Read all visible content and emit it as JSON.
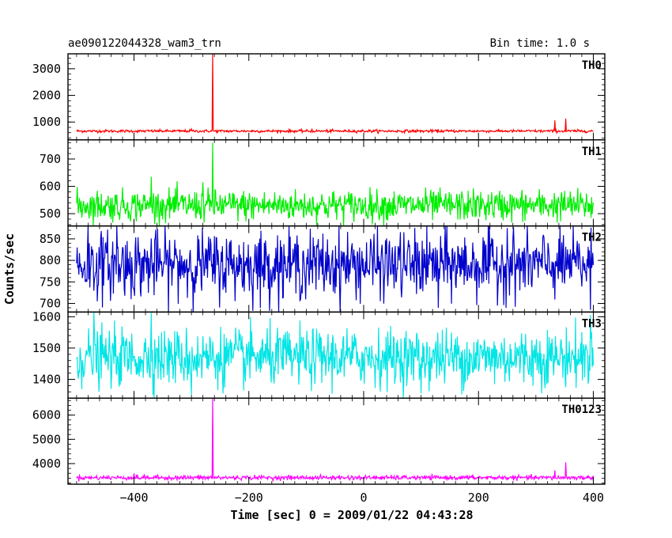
{
  "header": {
    "title": "ae090122044328_wam3_trn",
    "bin_time": "Bin time: 1.0 s"
  },
  "chart_data": {
    "type": "line",
    "xlabel": "Time [sec] 0 = 2009/01/22 04:43:28",
    "ylabel": "Counts/sec",
    "xlim": [
      -515,
      420
    ],
    "x_ticks": [
      -400,
      -200,
      0,
      200,
      400
    ],
    "x_range": [
      -500,
      400
    ],
    "panels": [
      {
        "name": "TH0",
        "color": "#ff0000",
        "ylim": [
          330,
          3560
        ],
        "y_ticks": [
          1000,
          2000,
          3000
        ],
        "baseline": 660,
        "noise": 25,
        "spikes": [
          [
            -263,
            3560
          ],
          [
            -300,
            740
          ],
          [
            -90,
            730
          ],
          [
            235,
            740
          ],
          [
            333,
            1060
          ],
          [
            352,
            1130
          ]
        ]
      },
      {
        "name": "TH1",
        "color": "#00ee00",
        "ylim": [
          455,
          770
        ],
        "y_ticks": [
          500,
          600,
          700
        ],
        "baseline": 530,
        "noise": 28,
        "spikes": [
          [
            -263,
            760
          ],
          [
            -370,
            635
          ],
          [
            -280,
            615
          ]
        ]
      },
      {
        "name": "TH2",
        "color": "#0000cc",
        "ylim": [
          680,
          880
        ],
        "y_ticks": [
          700,
          750,
          800,
          850
        ],
        "baseline": 790,
        "noise": 38,
        "spikes": [
          [
            -480,
            880
          ],
          [
            -430,
            880
          ],
          [
            250,
            875
          ],
          [
            130,
            690
          ],
          [
            -180,
            690
          ],
          [
            395,
            685
          ]
        ]
      },
      {
        "name": "TH3",
        "color": "#00e5e5",
        "ylim": [
          1340,
          1615
        ],
        "y_ticks": [
          1400,
          1500,
          1600
        ],
        "baseline": 1470,
        "noise": 45,
        "spikes": [
          [
            -470,
            1615
          ],
          [
            -370,
            1612
          ],
          [
            395,
            1605
          ],
          [
            -300,
            1350
          ],
          [
            100,
            1355
          ]
        ]
      },
      {
        "name": "TH0123",
        "color": "#ff00ff",
        "ylim": [
          3150,
          6700
        ],
        "y_ticks": [
          4000,
          5000,
          6000
        ],
        "baseline": 3420,
        "noise": 45,
        "spikes": [
          [
            -263,
            6700
          ],
          [
            352,
            4050
          ],
          [
            333,
            3720
          ],
          [
            -400,
            3600
          ]
        ]
      }
    ]
  }
}
